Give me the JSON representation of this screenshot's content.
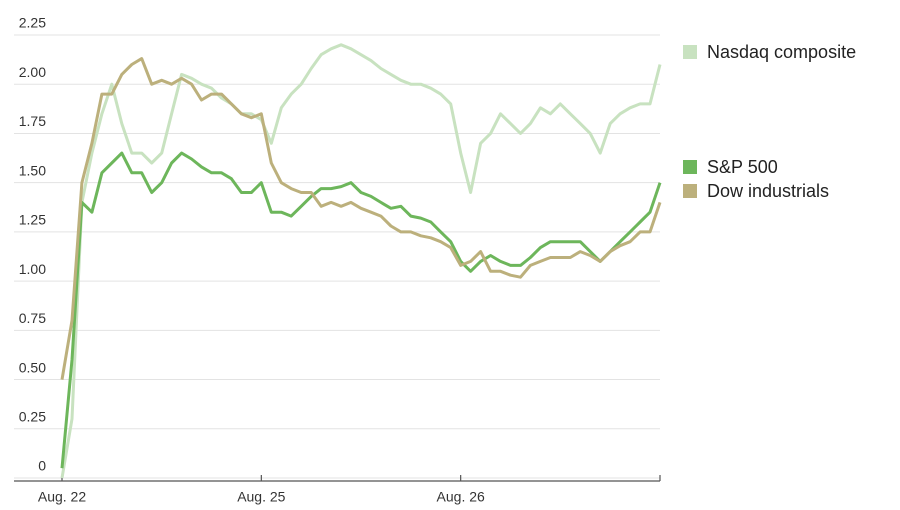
{
  "chart_data": {
    "type": "line",
    "x": [
      0,
      0.05,
      0.1,
      0.15,
      0.2,
      0.25,
      0.3,
      0.35,
      0.4,
      0.45,
      0.5,
      0.55,
      0.6,
      0.65,
      0.7,
      0.75,
      0.8,
      0.85,
      0.9,
      0.95,
      1,
      1.05,
      1.1,
      1.15,
      1.2,
      1.25,
      1.3,
      1.35,
      1.4,
      1.45,
      1.5,
      1.55,
      1.6,
      1.65,
      1.7,
      1.75,
      1.8,
      1.85,
      1.9,
      1.95,
      2,
      2.05,
      2.1,
      2.15,
      2.2,
      2.25,
      2.3,
      2.35,
      2.4,
      2.45,
      2.5,
      2.55,
      2.6,
      2.65,
      2.7,
      2.75,
      2.8,
      2.85,
      2.9,
      2.95,
      3
    ],
    "series": [
      {
        "name": "Nasdaq composite",
        "color": "#c8e2c0",
        "values": [
          0,
          0.3,
          1.4,
          1.65,
          1.85,
          2.0,
          1.8,
          1.65,
          1.65,
          1.6,
          1.65,
          1.85,
          2.05,
          2.03,
          2.0,
          1.98,
          1.93,
          1.9,
          1.85,
          1.85,
          1.82,
          1.7,
          1.88,
          1.95,
          2.0,
          2.08,
          2.15,
          2.18,
          2.2,
          2.18,
          2.15,
          2.12,
          2.08,
          2.05,
          2.02,
          2.0,
          2.0,
          1.98,
          1.95,
          1.9,
          1.65,
          1.45,
          1.7,
          1.75,
          1.85,
          1.8,
          1.75,
          1.8,
          1.88,
          1.85,
          1.9,
          1.85,
          1.8,
          1.75,
          1.65,
          1.8,
          1.85,
          1.88,
          1.9,
          1.9,
          2.1
        ]
      },
      {
        "name": "S&P 500",
        "color": "#6db65b",
        "values": [
          0.05,
          0.6,
          1.4,
          1.35,
          1.55,
          1.6,
          1.65,
          1.55,
          1.55,
          1.45,
          1.5,
          1.6,
          1.65,
          1.62,
          1.58,
          1.55,
          1.55,
          1.52,
          1.45,
          1.45,
          1.5,
          1.35,
          1.35,
          1.33,
          1.38,
          1.43,
          1.47,
          1.47,
          1.48,
          1.5,
          1.45,
          1.43,
          1.4,
          1.37,
          1.38,
          1.33,
          1.32,
          1.3,
          1.25,
          1.2,
          1.1,
          1.05,
          1.1,
          1.13,
          1.1,
          1.08,
          1.08,
          1.12,
          1.17,
          1.2,
          1.2,
          1.2,
          1.2,
          1.15,
          1.1,
          1.15,
          1.2,
          1.25,
          1.3,
          1.35,
          1.5
        ]
      },
      {
        "name": "Dow industrials",
        "color": "#bcb07c",
        "values": [
          0.5,
          0.8,
          1.5,
          1.7,
          1.95,
          1.95,
          2.05,
          2.1,
          2.13,
          2.0,
          2.02,
          2.0,
          2.03,
          2.0,
          1.92,
          1.95,
          1.95,
          1.9,
          1.85,
          1.83,
          1.85,
          1.6,
          1.5,
          1.47,
          1.45,
          1.45,
          1.38,
          1.4,
          1.38,
          1.4,
          1.37,
          1.35,
          1.33,
          1.28,
          1.25,
          1.25,
          1.23,
          1.22,
          1.2,
          1.17,
          1.08,
          1.1,
          1.15,
          1.05,
          1.05,
          1.03,
          1.02,
          1.08,
          1.1,
          1.12,
          1.12,
          1.12,
          1.15,
          1.13,
          1.1,
          1.15,
          1.18,
          1.2,
          1.25,
          1.25,
          1.4
        ]
      }
    ],
    "xlim": [
      0,
      3
    ],
    "xticks": [
      {
        "value": 0,
        "label": "Aug. 22"
      },
      {
        "value": 1,
        "label": "Aug. 25"
      },
      {
        "value": 2,
        "label": "Aug. 26"
      }
    ],
    "ylim": [
      0,
      2.25
    ],
    "yticks": [
      0,
      {
        "value": 0.25,
        "label": "0.25"
      },
      {
        "value": 0.5,
        "label": "0.50"
      },
      {
        "value": 0.75,
        "label": "0.75"
      },
      {
        "value": 1,
        "label": "1.00"
      },
      {
        "value": 1.25,
        "label": "1.25"
      },
      {
        "value": 1.5,
        "label": "1.50"
      },
      {
        "value": 1.75,
        "label": "1.75"
      },
      {
        "value": 2,
        "label": "2.00"
      },
      {
        "value": 2.25,
        "label": "2.25"
      }
    ],
    "grid": true
  }
}
